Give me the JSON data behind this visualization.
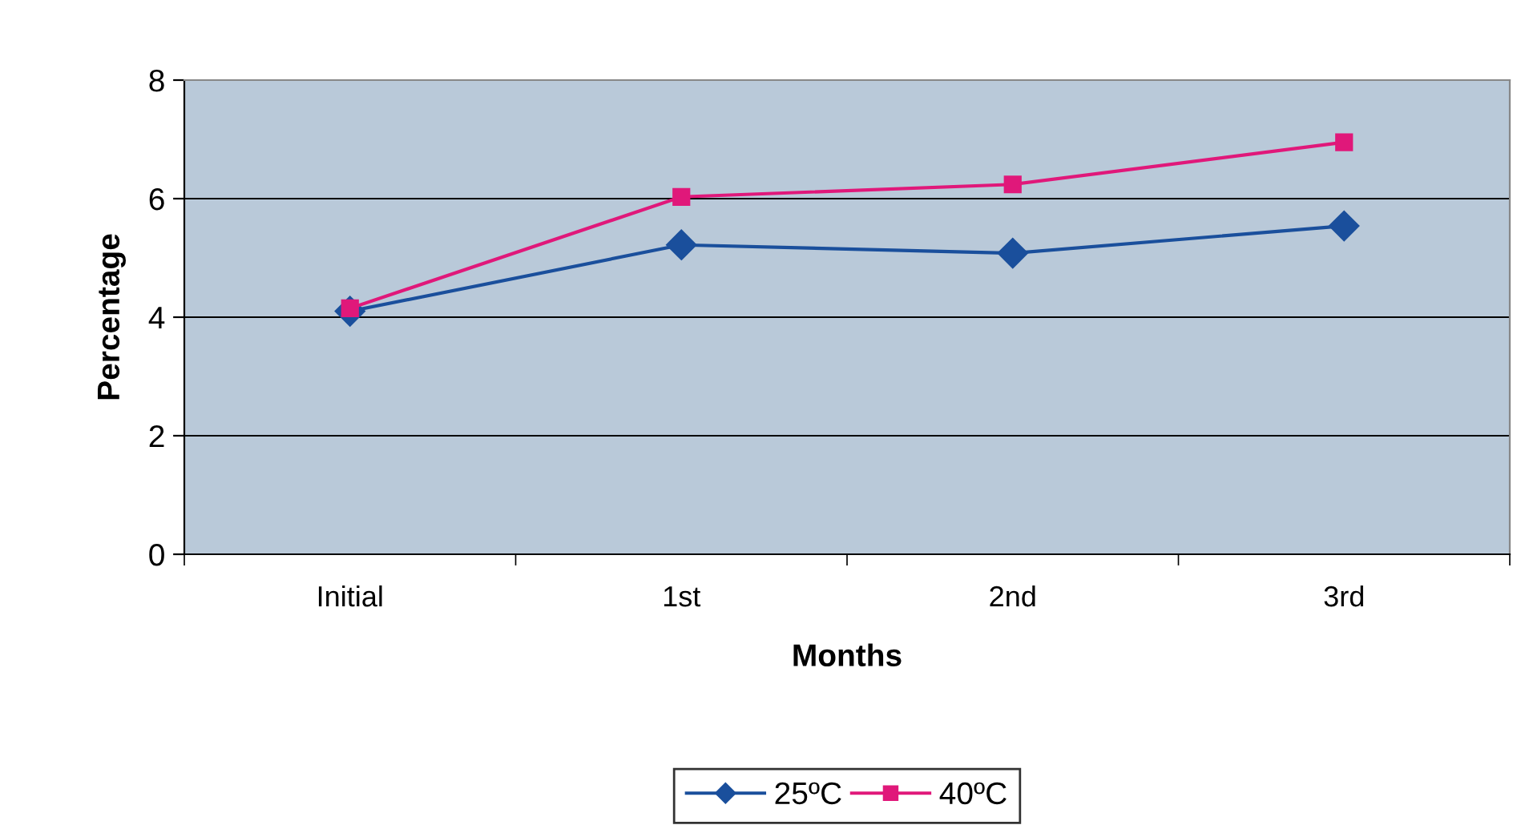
{
  "chart_data": {
    "type": "line",
    "xlabel": "Months",
    "ylabel": "Percentage",
    "categories": [
      "Initial",
      "1st",
      "2nd",
      "3rd"
    ],
    "series": [
      {
        "name": "25ºC",
        "color": "#1a4f9c",
        "marker": "diamond",
        "values": [
          4.1,
          5.22,
          5.08,
          5.54
        ]
      },
      {
        "name": "40ºC",
        "color": "#e0187a",
        "marker": "square",
        "values": [
          4.15,
          6.03,
          6.24,
          6.95
        ]
      }
    ],
    "ylim": [
      0,
      8
    ],
    "yticks": [
      0,
      2,
      4,
      6,
      8
    ],
    "grid": "y",
    "legend": "bottom",
    "line_style": "solid"
  }
}
